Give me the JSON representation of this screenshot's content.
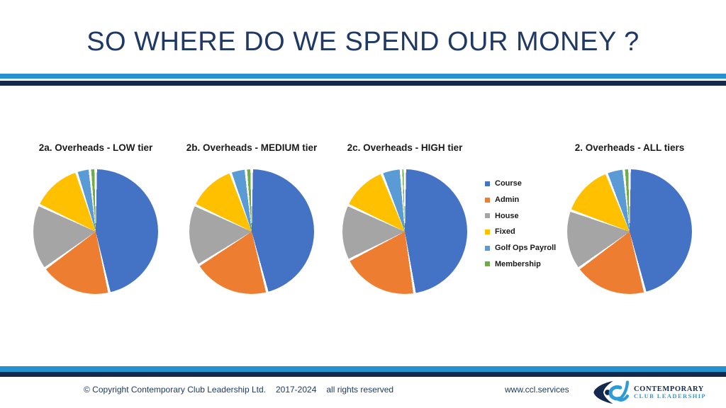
{
  "slide": {
    "title": "SO WHERE DO WE SPEND OUR MONEY ?",
    "accent_colors": {
      "navy": "#14294B",
      "light_blue": "#2492CF",
      "title_text": "#1F3864"
    }
  },
  "chart_data": [
    {
      "type": "pie",
      "title": "2a. Overheads - LOW tier",
      "categories": [
        "Course",
        "Admin",
        "House",
        "Fixed",
        "Golf Ops Payroll",
        "Membership"
      ],
      "values": [
        46.5,
        18.5,
        17,
        13,
        3.5,
        1.5
      ],
      "unit": "percent",
      "start_angle_deg": 0,
      "direction": "clockwise"
    },
    {
      "type": "pie",
      "title": "2b. Overheads - MEDIUM tier",
      "categories": [
        "Course",
        "Admin",
        "House",
        "Fixed",
        "Golf Ops Payroll",
        "Membership"
      ],
      "values": [
        46,
        20,
        16,
        12.5,
        4,
        1.5
      ],
      "unit": "percent",
      "start_angle_deg": 0,
      "direction": "clockwise"
    },
    {
      "type": "pie",
      "title": "2c. Overheads - HIGH tier",
      "categories": [
        "Course",
        "Admin",
        "House",
        "Fixed",
        "Golf Ops Payroll",
        "Membership"
      ],
      "values": [
        47.5,
        20,
        14.5,
        12,
        5,
        1
      ],
      "unit": "percent",
      "start_angle_deg": 0,
      "direction": "clockwise"
    },
    {
      "type": "pie",
      "title": "2. Overheads - ALL tiers",
      "categories": [
        "Course",
        "Admin",
        "House",
        "Fixed",
        "Golf Ops Payroll",
        "Membership"
      ],
      "values": [
        46,
        19,
        15.5,
        13.5,
        4.5,
        1.5
      ],
      "unit": "percent",
      "start_angle_deg": 0,
      "direction": "clockwise"
    }
  ],
  "legend": {
    "position": "right-of-third-chart",
    "items": [
      {
        "label": "Course",
        "color": "#4472C4"
      },
      {
        "label": "Admin",
        "color": "#ED7D31"
      },
      {
        "label": "House",
        "color": "#A5A5A5"
      },
      {
        "label": "Fixed",
        "color": "#FFC000"
      },
      {
        "label": "Golf Ops Payroll",
        "color": "#5B9BD5"
      },
      {
        "label": "Membership",
        "color": "#70AD47"
      }
    ]
  },
  "footer": {
    "copyright": "© Copyright Contemporary Club Leadership Ltd.",
    "years": "2017-2024",
    "rights": "all rights reserved",
    "website": "www.ccl.services",
    "logo": {
      "brand_line1": "CONTEMPORARY",
      "brand_line2": "CLUB LEADERSHIP"
    }
  }
}
